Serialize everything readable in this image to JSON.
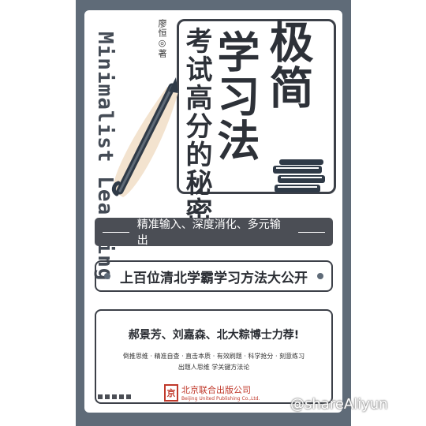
{
  "book": {
    "title_line1": "极简",
    "title_line2": "学习法",
    "subtitle": "考试高分的秘密",
    "author": "廖恒◎著",
    "english_title": "Minimalist Learning",
    "slogan": "精准输入、深度消化、多元输出",
    "reveal_line": "上百位清北学霸学习方法大公开",
    "recommenders": "郝景芳、刘嘉森、北大粽博士力荐!",
    "method_line1": "倒推思维 · 精准自查 · 直击本质 · 有效刷题 · 科学抢分 · 刻意练习",
    "method_line2": "出题人思维 学关键方法论",
    "publisher_cn": "北京联合出版公司",
    "publisher_en": "Beijing United Publishing Co.,Ltd.",
    "publisher_logo_glyph": "京"
  },
  "watermark": "@shareAliyun",
  "colors": {
    "cover_frame": "#5f6b78",
    "dark_text": "#2d3138",
    "accent_pencil": "#f3e3cf",
    "publisher_red": "#c0392b"
  }
}
